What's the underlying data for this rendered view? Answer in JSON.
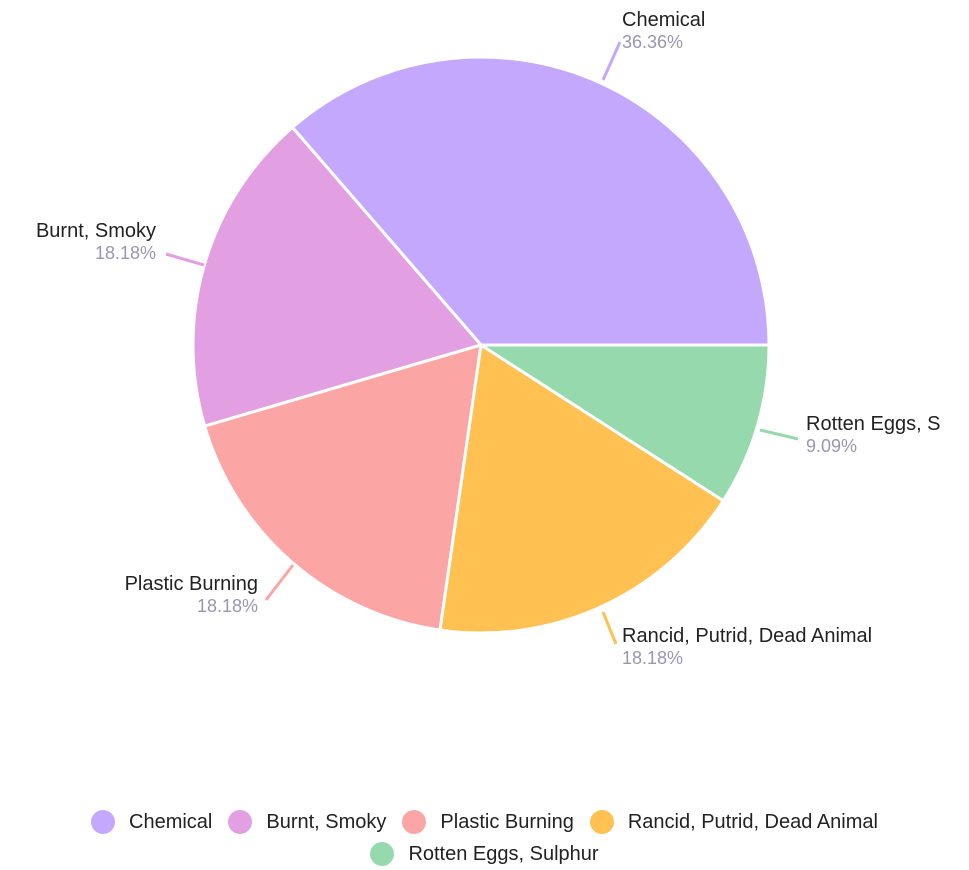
{
  "chart_data": {
    "type": "pie",
    "title": "",
    "categories": [
      "Chemical",
      "Burnt, Smoky",
      "Plastic Burning",
      "Rancid, Putrid, Dead Animal",
      "Rotten Eggs, Sulphur"
    ],
    "values": [
      36.36,
      18.18,
      18.18,
      18.18,
      9.09
    ],
    "value_labels": [
      "36.36%",
      "18.18%",
      "18.18%",
      "18.18%",
      "9.09%"
    ],
    "slice_labels": [
      "Chemical",
      "Burnt, Smoky",
      "Plastic Burning",
      "Rancid, Putrid, Dead Animal",
      "Rotten Eggs, S"
    ],
    "colors": [
      "#c4a8fd",
      "#e29fe2",
      "#fca5a5",
      "#fec152",
      "#95d9ad"
    ],
    "label_color": "#222222",
    "percent_color": "#9a96b2",
    "legend_position": "bottom",
    "start_angle_note": "slices start at 3 o'clock, counter-clockwise"
  },
  "legend": {
    "row1": [
      {
        "label": "Chemical",
        "color": "#c4a8fd"
      },
      {
        "label": "Burnt, Smoky",
        "color": "#e29fe2"
      },
      {
        "label": "Plastic Burning",
        "color": "#fca5a5"
      },
      {
        "label": "Rancid, Putrid, Dead Animal",
        "color": "#fec152"
      }
    ],
    "row2": [
      {
        "label": "Rotten Eggs, Sulphur",
        "color": "#95d9ad"
      }
    ]
  }
}
